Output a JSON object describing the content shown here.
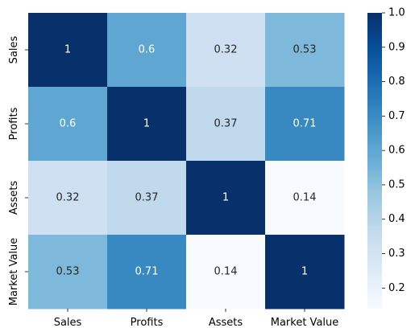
{
  "chart_data": {
    "type": "heatmap",
    "title": "",
    "xlabel": "",
    "ylabel": "",
    "x_categories": [
      "Sales",
      "Profits",
      "Assets",
      "Market Value"
    ],
    "y_categories": [
      "Sales",
      "Profits",
      "Assets",
      "Market Value"
    ],
    "values": [
      [
        1,
        0.6,
        0.32,
        0.53
      ],
      [
        0.6,
        1,
        0.37,
        0.71
      ],
      [
        0.32,
        0.37,
        1,
        0.14
      ],
      [
        0.53,
        0.71,
        0.14,
        1
      ]
    ],
    "cell_labels": [
      [
        "1",
        "0.6",
        "0.32",
        "0.53"
      ],
      [
        "0.6",
        "1",
        "0.37",
        "0.71"
      ],
      [
        "0.32",
        "0.37",
        "1",
        "0.14"
      ],
      [
        "0.53",
        "0.71",
        "0.14",
        "1"
      ]
    ],
    "colormap": "Blues",
    "vmin": 0.14,
    "vmax": 1.0,
    "colorbar": {
      "ticks": [
        0.2,
        0.3,
        0.4,
        0.5,
        0.6,
        0.7,
        0.8,
        0.9,
        1.0
      ],
      "tick_labels": [
        "0.2",
        "0.3",
        "0.4",
        "0.5",
        "0.6",
        "0.7",
        "0.8",
        "0.9",
        "1.0"
      ]
    },
    "grid": false,
    "legend": "colorbar-right"
  }
}
